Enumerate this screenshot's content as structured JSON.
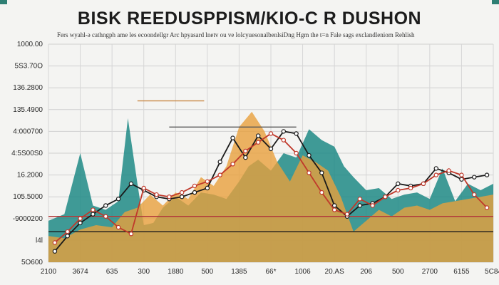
{
  "chart_data": {
    "type": "line",
    "title": "BISK REEDUSPPISM/KIO-C R DUSHON",
    "subtitle": "Fers wyahl-ə cathngph ame les ecoondellgr Arc hpyasard lnetv ou ve lolcyuesonalbenlsiDng Hgm the t=n Fale  sags exclandleniom Rehlish",
    "y_tick_labels": [
      "1000.00",
      "5S3.70O",
      "136.2800",
      "135.4900",
      "4:000700",
      "4:5S00S0",
      "16.2000",
      "105.5000",
      "-9000200",
      "l4l",
      "5O600"
    ],
    "x_tick_labels": [
      "2100",
      "3674",
      "635",
      "300",
      "1880",
      "500",
      "1385",
      "66*",
      "1006",
      "20.AS",
      "206",
      "500",
      "2700",
      "6155",
      "5C84"
    ],
    "grid": true,
    "ylim": [
      0,
      10
    ],
    "xlim": [
      0,
      14
    ],
    "series": [
      {
        "kind": "area",
        "color": "#1f8a86",
        "x": [
          0,
          0.5,
          1.0,
          1.4,
          1.8,
          2.2,
          2.5,
          2.8,
          3.0,
          3.3,
          3.6,
          4.0,
          4.4,
          4.8,
          5.2,
          5.6,
          6.0,
          6.3,
          6.6,
          7.0,
          7.4,
          7.8,
          8.2,
          8.6,
          9.0,
          9.3,
          9.6,
          10.0,
          10.4,
          10.8,
          11.2,
          11.6,
          12.0,
          12.4,
          12.8,
          13.2,
          13.6,
          14.0
        ],
        "y": [
          1.9,
          2.2,
          5.0,
          2.6,
          2.4,
          2.8,
          6.6,
          3.6,
          1.7,
          1.8,
          2.5,
          3.0,
          2.6,
          3.2,
          3.1,
          2.9,
          3.7,
          4.4,
          4.7,
          4.2,
          5.0,
          4.8,
          6.1,
          5.6,
          5.3,
          4.4,
          3.9,
          3.3,
          3.4,
          2.9,
          3.1,
          3.2,
          2.9,
          4.3,
          2.8,
          3.6,
          3.3,
          3.6
        ]
      },
      {
        "kind": "area",
        "color": "#e8a03c",
        "x": [
          0,
          0.5,
          1.0,
          1.5,
          2.0,
          2.4,
          2.8,
          3.2,
          3.6,
          4.0,
          4.4,
          4.8,
          5.2,
          5.6,
          6.0,
          6.4,
          6.8,
          7.2,
          7.6,
          8.0,
          8.4,
          8.8,
          9.2,
          9.6,
          10.0,
          10.4,
          10.8,
          11.2,
          11.6,
          12.0,
          12.4,
          12.8,
          13.2,
          13.6,
          14.0
        ],
        "y": [
          1.2,
          1.1,
          1.5,
          1.7,
          1.6,
          2.3,
          2.5,
          3.1,
          2.6,
          3.2,
          2.9,
          3.9,
          3.5,
          4.4,
          6.2,
          6.9,
          6.0,
          4.6,
          3.7,
          4.9,
          4.6,
          4.2,
          3.0,
          1.4,
          1.9,
          2.4,
          2.1,
          2.5,
          2.6,
          2.4,
          2.7,
          2.8,
          2.9,
          3.0,
          3.1
        ]
      },
      {
        "kind": "line",
        "color": "#1a1a1a",
        "x": [
          0.2,
          0.6,
          1.0,
          1.4,
          1.8,
          2.2,
          2.6,
          3.0,
          3.4,
          3.8,
          4.2,
          4.6,
          5.0,
          5.4,
          5.8,
          6.2,
          6.6,
          7.0,
          7.4,
          7.8,
          8.2,
          8.6,
          9.0,
          9.4,
          9.8,
          10.2,
          10.6,
          11.0,
          11.4,
          11.8,
          12.2,
          12.6,
          13.0,
          13.4,
          13.8
        ],
        "y": [
          0.5,
          1.2,
          1.8,
          2.2,
          2.6,
          2.9,
          3.6,
          3.3,
          3.0,
          2.9,
          3.0,
          3.2,
          3.4,
          4.6,
          5.7,
          4.8,
          5.8,
          5.2,
          6.0,
          5.9,
          4.9,
          4.1,
          2.6,
          2.1,
          2.6,
          2.7,
          3.0,
          3.6,
          3.5,
          3.6,
          4.3,
          4.1,
          3.8,
          3.9,
          4.0
        ]
      },
      {
        "kind": "line",
        "color": "#c0392b",
        "x": [
          0.2,
          0.6,
          1.0,
          1.4,
          1.8,
          2.2,
          2.6,
          3.0,
          3.4,
          3.8,
          4.2,
          4.6,
          5.0,
          5.4,
          5.8,
          6.2,
          6.6,
          7.0,
          7.4,
          7.8,
          8.2,
          8.6,
          9.0,
          9.4,
          9.8,
          10.2,
          10.6,
          11.0,
          11.4,
          11.8,
          12.2,
          12.6,
          13.0,
          13.4,
          13.8
        ],
        "y": [
          0.9,
          1.4,
          2.0,
          2.4,
          2.1,
          1.6,
          1.3,
          3.4,
          3.1,
          3.0,
          3.2,
          3.5,
          3.7,
          4.0,
          4.5,
          5.1,
          5.5,
          5.9,
          5.6,
          5.0,
          4.1,
          3.2,
          2.4,
          2.2,
          2.9,
          2.6,
          3.0,
          3.3,
          3.4,
          3.6,
          4.0,
          4.2,
          4.0,
          3.1,
          2.5
        ]
      }
    ],
    "reference_lines": [
      {
        "y": 7.4,
        "x0": 2.8,
        "x1": 4.9,
        "color": "#c98a4a"
      },
      {
        "y": 6.2,
        "x0": 3.8,
        "x1": 7.8,
        "color": "#555555"
      },
      {
        "y": 2.1,
        "x0": 0.0,
        "x1": 14.0,
        "color": "#b23a3a"
      },
      {
        "y": 1.4,
        "x0": 0.0,
        "x1": 14.0,
        "color": "#1a1a1a"
      }
    ]
  }
}
